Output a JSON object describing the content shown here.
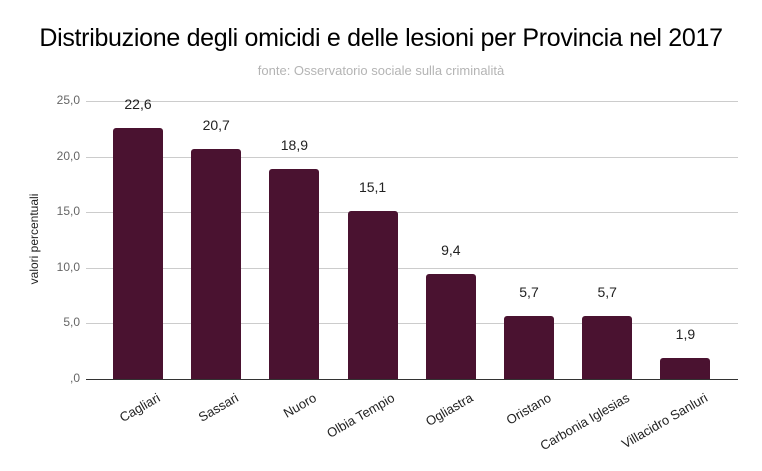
{
  "chart_data": {
    "type": "bar",
    "title": "Distribuzione degli omicidi e delle lesioni per Provincia nel 2017",
    "subtitle": "fonte: Osservatorio sociale sulla criminalità",
    "xlabel": "",
    "ylabel": "valori percentuali",
    "ylim": [
      0,
      25
    ],
    "yticks": [
      "25,0",
      "20,0",
      "15,0",
      "10,0",
      "5,0",
      ",0"
    ],
    "grid": true,
    "legend": "none",
    "bar_color": "#4a1230",
    "categories": [
      "Cagliari",
      "Sassari",
      "Nuoro",
      "Olbia Tempio",
      "Ogliastra",
      "Oristano",
      "Carbonia Iglesias",
      "Villacidro Sanluri"
    ],
    "values": [
      22.6,
      20.7,
      18.9,
      15.1,
      9.4,
      5.7,
      5.7,
      1.9
    ],
    "value_labels": [
      "22,6",
      "20,7",
      "18,9",
      "15,1",
      "9,4",
      "5,7",
      "5,7",
      "1,9"
    ]
  }
}
